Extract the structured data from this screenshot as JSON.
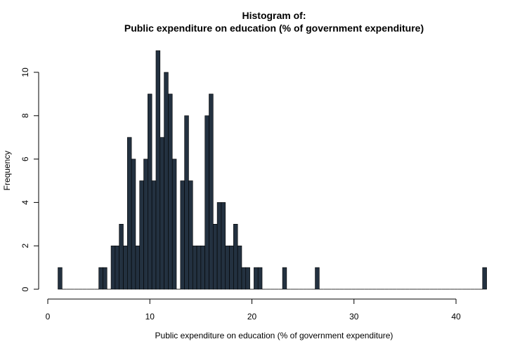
{
  "chart_data": {
    "type": "bar",
    "title": "Histogram of:",
    "subtitle": "Public expenditure on education (% of government expenditure)",
    "xlabel": "Public expenditure on education (% of government expenditure)",
    "ylabel": "Frequency",
    "xlim": [
      0,
      43
    ],
    "ylim": [
      0,
      11
    ],
    "xticks": [
      0,
      10,
      20,
      30,
      40
    ],
    "yticks": [
      0,
      2,
      4,
      6,
      8,
      10
    ],
    "bin_width": 0.4,
    "bin_start": 1.0,
    "values": [
      1,
      0,
      0,
      0,
      0,
      0,
      0,
      0,
      0,
      0,
      1,
      1,
      0,
      2,
      2,
      3,
      2,
      7,
      6,
      2,
      5,
      6,
      9,
      5,
      11,
      7,
      10,
      9,
      6,
      0,
      5,
      8,
      5,
      2,
      2,
      2,
      8,
      9,
      3,
      4,
      4,
      2,
      2,
      3,
      2,
      1,
      1,
      0,
      1,
      1,
      0,
      0,
      0,
      0,
      0,
      1,
      0,
      0,
      0,
      0,
      0,
      0,
      0,
      1,
      0,
      0,
      0,
      0,
      0,
      0,
      0,
      0,
      0,
      0,
      0,
      0,
      0,
      0,
      0,
      0,
      0,
      0,
      0,
      0,
      0,
      0,
      0,
      0,
      0,
      0,
      0,
      0,
      0,
      0,
      0,
      0,
      0,
      0,
      0,
      0,
      0,
      0,
      0,
      0,
      1
    ],
    "bar_color": "#233140"
  }
}
